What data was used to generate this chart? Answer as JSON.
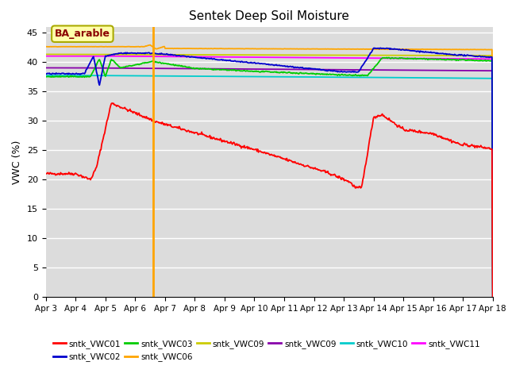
{
  "title": "Sentek Deep Soil Moisture",
  "ylabel": "VWC (%)",
  "ylim": [
    0,
    46
  ],
  "yticks": [
    0,
    5,
    10,
    15,
    20,
    25,
    30,
    35,
    40,
    45
  ],
  "date_labels": [
    "Apr 3",
    "Apr 4",
    "Apr 5",
    "Apr 6",
    "Apr 7",
    "Apr 8",
    "Apr 9",
    "Apr 10",
    "Apr 11",
    "Apr 12",
    "Apr 13",
    "Apr 14",
    "Apr 15",
    "Apr 16",
    "Apr 17",
    "Apr 18"
  ],
  "annotation_label": "BA_arable",
  "vline_x": 3.6,
  "vline_color": "#FFA500",
  "background_color": "#DCDCDC",
  "legend_entries": [
    {
      "label": "sntk_VWC01",
      "color": "#FF0000"
    },
    {
      "label": "sntk_VWC02",
      "color": "#0000CD"
    },
    {
      "label": "sntk_VWC03",
      "color": "#00CC00"
    },
    {
      "label": "sntk_VWC06",
      "color": "#FFA500"
    },
    {
      "label": "sntk_VWC09",
      "color": "#CCCC00"
    },
    {
      "label": "sntk_VWC09",
      "color": "#8800AA"
    },
    {
      "label": "sntk_VWC10",
      "color": "#00CCCC"
    },
    {
      "label": "sntk_VWC11",
      "color": "#FF00FF"
    }
  ],
  "series": {
    "VWC01_color": "#FF0000",
    "VWC02_color": "#0000CD",
    "VWC03_color": "#00CC00",
    "VWC06_color": "#FFA500",
    "VWC09y_color": "#CCCC00",
    "VWC09p_color": "#8800AA",
    "VWC10_color": "#00CCCC",
    "VWC11_color": "#FF00FF"
  }
}
